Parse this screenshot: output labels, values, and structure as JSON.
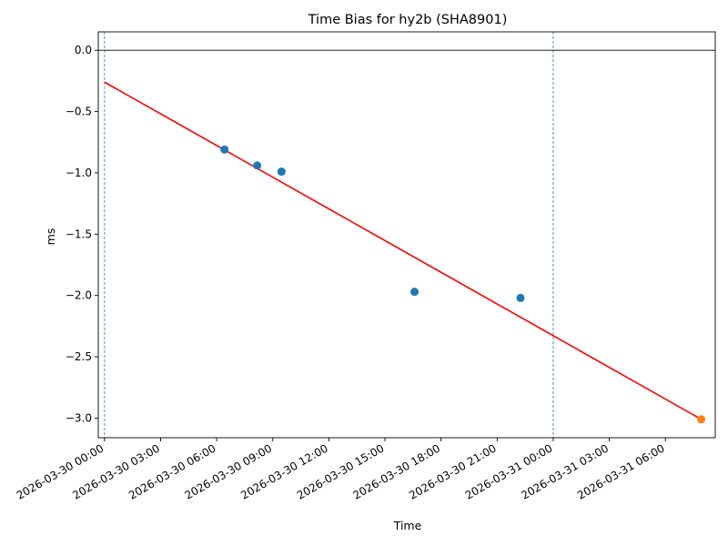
{
  "chart_data": {
    "type": "scatter",
    "title": "Time Bias for hy2b (SHA8901)",
    "xlabel": "Time",
    "ylabel": "ms",
    "x_tick_labels": [
      "2026-03-30 00:00",
      "2026-03-30 03:00",
      "2026-03-30 06:00",
      "2026-03-30 09:00",
      "2026-03-30 12:00",
      "2026-03-30 15:00",
      "2026-03-30 18:00",
      "2026-03-30 21:00",
      "2026-03-31 00:00",
      "2026-03-31 03:00",
      "2026-03-31 06:00"
    ],
    "y_ticks": [
      0.0,
      -0.5,
      -1.0,
      -1.5,
      -2.0,
      -2.5,
      -3.0
    ],
    "y_tick_labels": [
      "0.0",
      "−0.5",
      "−1.0",
      "−1.5",
      "−2.0",
      "−2.5",
      "−3.0"
    ],
    "xlim": [
      "2026-03-29 23:40",
      "2026-03-31 08:40"
    ],
    "ylim": [
      -3.16,
      0.15
    ],
    "grid": false,
    "series": [
      {
        "kind": "points",
        "color": "#1f77b4",
        "points": [
          {
            "x": "2026-03-30 06:25",
            "y": -0.81
          },
          {
            "x": "2026-03-30 08:10",
            "y": -0.94
          },
          {
            "x": "2026-03-30 09:28",
            "y": -0.99
          },
          {
            "x": "2026-03-30 16:35",
            "y": -1.97
          },
          {
            "x": "2026-03-30 22:15",
            "y": -2.02
          }
        ]
      },
      {
        "kind": "points",
        "color": "#ff7f0e",
        "points": [
          {
            "x": "2026-03-31 07:55",
            "y": -3.01
          }
        ]
      },
      {
        "kind": "line",
        "color": "#ff0000",
        "points": [
          {
            "x": "2026-03-30 00:00",
            "y": -0.26
          },
          {
            "x": "2026-03-31 07:55",
            "y": -3.01
          }
        ]
      }
    ],
    "horizontal_lines": [
      {
        "y": 0.0,
        "color": "#000000"
      }
    ],
    "vertical_lines": [
      {
        "x": "2026-03-30 00:00",
        "color": "#1f77b4",
        "style": "dashed"
      },
      {
        "x": "2026-03-31 00:00",
        "color": "#1f77b4",
        "style": "dashed"
      }
    ]
  }
}
